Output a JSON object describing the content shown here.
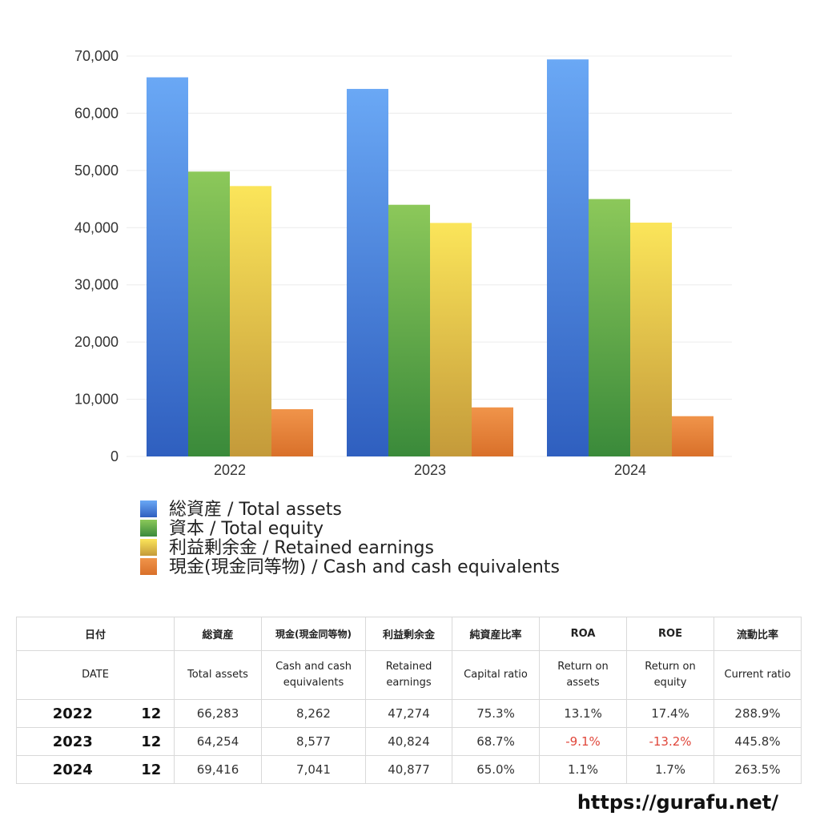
{
  "chart_data": {
    "type": "bar",
    "categories": [
      "2022",
      "2023",
      "2024"
    ],
    "ylim": [
      0,
      70000
    ],
    "yticks": [
      0,
      10000,
      20000,
      30000,
      40000,
      50000,
      60000,
      70000
    ],
    "ytick_labels": [
      "0",
      "10,000",
      "20,000",
      "30,000",
      "40,000",
      "50,000",
      "60,000",
      "70,000"
    ],
    "grid": true,
    "legend_position": "bottom-left",
    "series": [
      {
        "name": "総資産 / Total assets",
        "values": [
          66283,
          64254,
          69416
        ],
        "color_top": "#6aa8f5",
        "color_bottom": "#2f5fbf"
      },
      {
        "name": "資本 / Total equity",
        "values": [
          49800,
          44000,
          45000
        ],
        "color_top": "#8cc85a",
        "color_bottom": "#3a8a3a"
      },
      {
        "name": "利益剰余金 / Retained earnings",
        "values": [
          47274,
          40824,
          40877
        ],
        "color_top": "#fbe55a",
        "color_bottom": "#c49a3a"
      },
      {
        "name": "現金(現金同等物) / Cash and cash equivalents",
        "values": [
          8262,
          8577,
          7041
        ],
        "color_top": "#f0944a",
        "color_bottom": "#d9702a"
      }
    ]
  },
  "table": {
    "header_jp": [
      "日付",
      "総資産",
      "現金(現金同等物)",
      "利益剰余金",
      "純資産比率",
      "ROA",
      "ROE",
      "流動比率"
    ],
    "header_en": [
      "DATE",
      "Total assets",
      "Cash and cash\nequivalents",
      "Retained\nearnings",
      "Capital ratio",
      "Return on\nassets",
      "Return on\nequity",
      "Current ratio"
    ],
    "rows": [
      {
        "year": "2022",
        "month": "12",
        "cells": [
          "66,283",
          "8,262",
          "47,274",
          "75.3%",
          "13.1%",
          "17.4%",
          "288.9%"
        ],
        "negative": [
          false,
          false,
          false,
          false,
          false,
          false,
          false
        ]
      },
      {
        "year": "2023",
        "month": "12",
        "cells": [
          "64,254",
          "8,577",
          "40,824",
          "68.7%",
          "-9.1%",
          "-13.2%",
          "445.8%"
        ],
        "negative": [
          false,
          false,
          false,
          false,
          true,
          true,
          false
        ]
      },
      {
        "year": "2024",
        "month": "12",
        "cells": [
          "69,416",
          "7,041",
          "40,877",
          "65.0%",
          "1.1%",
          "1.7%",
          "263.5%"
        ],
        "negative": [
          false,
          false,
          false,
          false,
          false,
          false,
          false
        ]
      }
    ]
  },
  "footer": {
    "url": "https://gurafu.net/"
  }
}
